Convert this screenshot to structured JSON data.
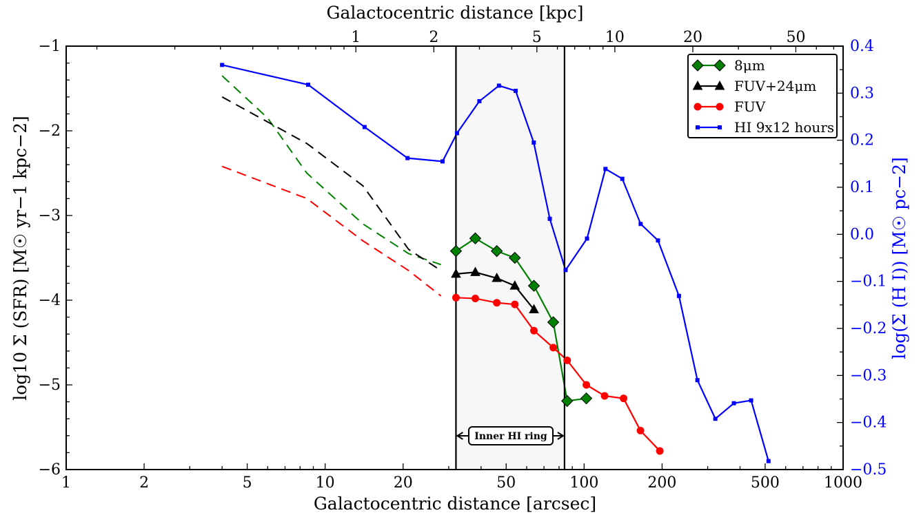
{
  "chart_data": {
    "type": "line",
    "xlabel_bottom": "Galactocentric distance [arcsec]",
    "xlabel_top": "Galactocentric distance [kpc]",
    "ylabel_left": "log10 Σ (SFR) [M☉ yr−1 kpc−2]",
    "ylabel_right": "log(Σ (H I)) [M☉ pc−2]",
    "x_scale": "log",
    "xlim": [
      1,
      1000
    ],
    "ylim_left": [
      -6,
      -1
    ],
    "ylim_right": [
      -0.5,
      0.4
    ],
    "xticks_bottom": [
      {
        "value": 1,
        "label": "1"
      },
      {
        "value": 2,
        "label": "2"
      },
      {
        "value": 5,
        "label": "5"
      },
      {
        "value": 10,
        "label": "10"
      },
      {
        "value": 20,
        "label": "20"
      },
      {
        "value": 50,
        "label": "50"
      },
      {
        "value": 100,
        "label": "100"
      },
      {
        "value": 200,
        "label": "200"
      },
      {
        "value": 500,
        "label": "500"
      },
      {
        "value": 1000,
        "label": "1000"
      }
    ],
    "xticks_top": [
      {
        "value": 1,
        "label": "1"
      },
      {
        "value": 2,
        "label": "2"
      },
      {
        "value": 5,
        "label": "5"
      },
      {
        "value": 10,
        "label": "10"
      },
      {
        "value": 20,
        "label": "20"
      },
      {
        "value": 50,
        "label": "50"
      }
    ],
    "kpc_per_arcsec": 0.0761,
    "yticks_left": [
      {
        "value": -1,
        "label": "−1"
      },
      {
        "value": -2,
        "label": "−2"
      },
      {
        "value": -3,
        "label": "−3"
      },
      {
        "value": -4,
        "label": "−4"
      },
      {
        "value": -5,
        "label": "−5"
      },
      {
        "value": -6,
        "label": "−6"
      }
    ],
    "yticks_right": [
      {
        "value": 0.4,
        "label": "0.4"
      },
      {
        "value": 0.3,
        "label": "0.3"
      },
      {
        "value": 0.2,
        "label": "0.2"
      },
      {
        "value": 0.1,
        "label": "0.1"
      },
      {
        "value": 0.0,
        "label": "0.0"
      },
      {
        "value": -0.1,
        "label": "−0.1"
      },
      {
        "value": -0.2,
        "label": "−0.2"
      },
      {
        "value": -0.3,
        "label": "−0.3"
      },
      {
        "value": -0.4,
        "label": "−0.4"
      },
      {
        "value": -0.5,
        "label": "−0.5"
      }
    ],
    "ring": {
      "x_start": 32,
      "x_end": 84,
      "label": "Inner HI ring"
    },
    "series": [
      {
        "name": "8μm",
        "color": "#008000",
        "marker": "diamond",
        "axis": "left",
        "dashed": {
          "x": [
            4,
            6,
            8.5,
            14,
            21,
            28
          ],
          "y": [
            -1.35,
            -1.85,
            -2.5,
            -3.1,
            -3.45,
            -3.58
          ]
        },
        "solid": {
          "x": [
            32,
            38,
            46,
            54,
            64,
            76,
            86,
            102
          ],
          "y": [
            -3.42,
            -3.27,
            -3.42,
            -3.5,
            -3.83,
            -4.26,
            -5.19,
            -5.16
          ]
        }
      },
      {
        "name": "FUV+24μm",
        "color": "#000000",
        "marker": "triangle",
        "axis": "left",
        "dashed": {
          "x": [
            4,
            8.5,
            14,
            21,
            28
          ],
          "y": [
            -1.6,
            -2.15,
            -2.65,
            -3.4,
            -3.65
          ]
        },
        "solid": {
          "x": [
            32,
            38,
            46,
            54,
            64
          ],
          "y": [
            -3.69,
            -3.67,
            -3.74,
            -3.83,
            -4.11
          ]
        }
      },
      {
        "name": "FUV",
        "color": "#ff0000",
        "marker": "circle",
        "axis": "left",
        "dashed": {
          "x": [
            4,
            8.5,
            14,
            21,
            28
          ],
          "y": [
            -2.42,
            -2.8,
            -3.3,
            -3.65,
            -3.95
          ]
        },
        "solid": {
          "x": [
            32,
            38,
            46,
            54,
            64,
            76,
            86,
            102,
            120,
            142,
            165,
            196
          ],
          "y": [
            -3.97,
            -3.98,
            -4.03,
            -4.05,
            -4.36,
            -4.56,
            -4.71,
            -5.0,
            -5.13,
            -5.16,
            -5.54,
            -5.78
          ]
        }
      },
      {
        "name": "HI 9x12 hours",
        "color": "#0000ff",
        "marker": "square",
        "axis": "right",
        "solid": {
          "x": [
            4,
            8.6,
            14.2,
            20.8,
            28.4,
            32.3,
            39.4,
            46.9,
            54.4,
            63.9,
            73.7,
            84.8,
            102.6,
            120.9,
            140.4,
            165.3,
            192.8,
            232.4,
            273.8,
            321.2,
            378.6,
            441.4,
            515.2
          ],
          "y": [
            0.36,
            0.318,
            0.228,
            0.162,
            0.155,
            0.215,
            0.283,
            0.316,
            0.305,
            0.195,
            0.033,
            -0.076,
            -0.009,
            0.139,
            0.118,
            0.022,
            -0.013,
            -0.131,
            -0.31,
            -0.392,
            -0.359,
            -0.353,
            -0.482
          ]
        }
      }
    ],
    "legend": {
      "placement": "top-right"
    }
  }
}
